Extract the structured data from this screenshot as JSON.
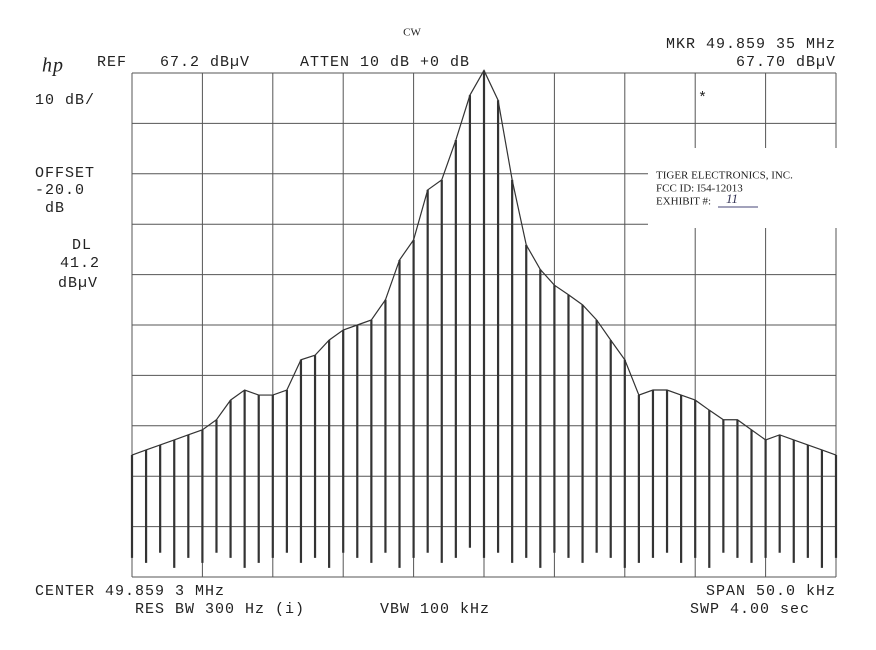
{
  "chart_data": {
    "type": "line",
    "mode": "CW",
    "logo": "hp",
    "ref_label": "REF",
    "ref_value": "67.2 dBµV",
    "atten": "ATTEN 10 dB +0 dB",
    "marker_freq": "MKR 49.859 35 MHz",
    "marker_level": "67.70 dBµV",
    "marker_symbol": "*",
    "scale": "10 dB/",
    "offset_lines": [
      "OFFSET",
      "-20.0",
      "dB"
    ],
    "dl_lines": [
      "DL",
      "41.2",
      "dBµV"
    ],
    "center": "CENTER 49.859 3 MHz",
    "span": "SPAN 50.0 kHz",
    "res_bw": "RES BW 300 Hz (i)",
    "vbw": "VBW 100 kHz",
    "sweep": "SWP 4.00 sec",
    "stamp": [
      "TIGER ELECTRONICS, INC.",
      "FCC ID: I54-12013",
      "EXHIBIT #:",
      "11"
    ],
    "xlim": [
      49.8343,
      49.8843
    ],
    "ylim": [
      -32.8,
      67.2
    ],
    "grid": true,
    "color": "#333333",
    "x": [
      49.8343,
      49.8353,
      49.8363,
      49.8373,
      49.8383,
      49.8393,
      49.8403,
      49.8413,
      49.8423,
      49.8433,
      49.8443,
      49.8453,
      49.8463,
      49.8473,
      49.8483,
      49.8493,
      49.8503,
      49.8513,
      49.8523,
      49.8533,
      49.8543,
      49.8553,
      49.8563,
      49.8573,
      49.8583,
      49.8593,
      49.8603,
      49.8613,
      49.8623,
      49.8633,
      49.8643,
      49.8653,
      49.8663,
      49.8673,
      49.8683,
      49.8693,
      49.8703,
      49.8713,
      49.8723,
      49.8733,
      49.8743,
      49.8753,
      49.8763,
      49.8773,
      49.8783,
      49.8793,
      49.8803,
      49.8813,
      49.8823,
      49.8833,
      49.8843
    ],
    "values": [
      -8.6,
      -7.6,
      -6.6,
      -5.6,
      -4.6,
      -3.6,
      -1.6,
      2.3,
      4.3,
      3.3,
      3.3,
      4.3,
      10.3,
      11.2,
      14.2,
      16.2,
      17.2,
      18.2,
      22.2,
      30.1,
      34.1,
      44.0,
      46.0,
      53.9,
      62.8,
      67.7,
      61.8,
      46.0,
      33.1,
      28.2,
      25.1,
      23.2,
      21.2,
      18.2,
      14.2,
      10.3,
      3.3,
      4.3,
      4.3,
      3.3,
      2.3,
      0.3,
      -1.6,
      -1.6,
      -3.6,
      -5.6,
      -4.6,
      -5.6,
      -6.6,
      -7.6,
      -8.6
    ],
    "lows": [
      -29,
      -30,
      -28,
      -31,
      -29,
      -30,
      -28,
      -29,
      -31,
      -30,
      -29,
      -28,
      -30,
      -29,
      -31,
      -28,
      -29,
      -30,
      -28,
      -31,
      -29,
      -28,
      -30,
      -29,
      -27,
      -29,
      -28,
      -30,
      -29,
      -31,
      -28,
      -29,
      -30,
      -28,
      -29,
      -31,
      -30,
      -29,
      -28,
      -30,
      -29,
      -31,
      -28,
      -29,
      -30,
      -29,
      -28,
      -30,
      -29,
      -31,
      -29
    ]
  }
}
